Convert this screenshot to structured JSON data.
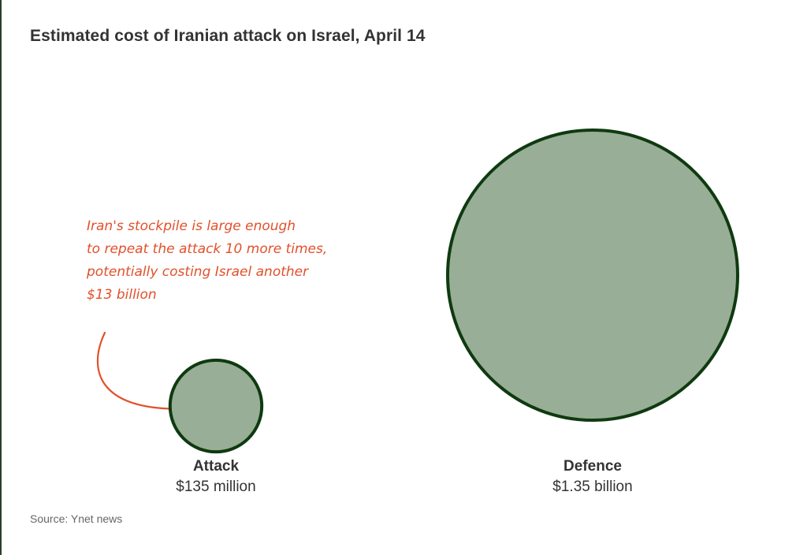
{
  "title": "Estimated cost of Iranian attack on Israel, April 14",
  "source": "Source: Ynet news",
  "colors": {
    "bubble_fill": "#98ae96",
    "bubble_stroke": "#0f3a10",
    "annotation": "#e2502a"
  },
  "annotation": {
    "lines": [
      "Iran's stockpile is large enough",
      "to repeat the attack 10 more times,",
      "potentially costing Israel another",
      "$13 billion"
    ]
  },
  "chart_data": {
    "type": "bubble",
    "title": "Estimated cost of Iranian attack on Israel, April 14",
    "size_encoding": "area",
    "categories": [
      "Attack",
      "Defence"
    ],
    "values": [
      135000000,
      1350000000
    ],
    "value_labels": [
      "$135 million",
      "$1.35 billion"
    ],
    "series": [
      {
        "values": [
          135000000,
          1350000000
        ]
      }
    ]
  }
}
